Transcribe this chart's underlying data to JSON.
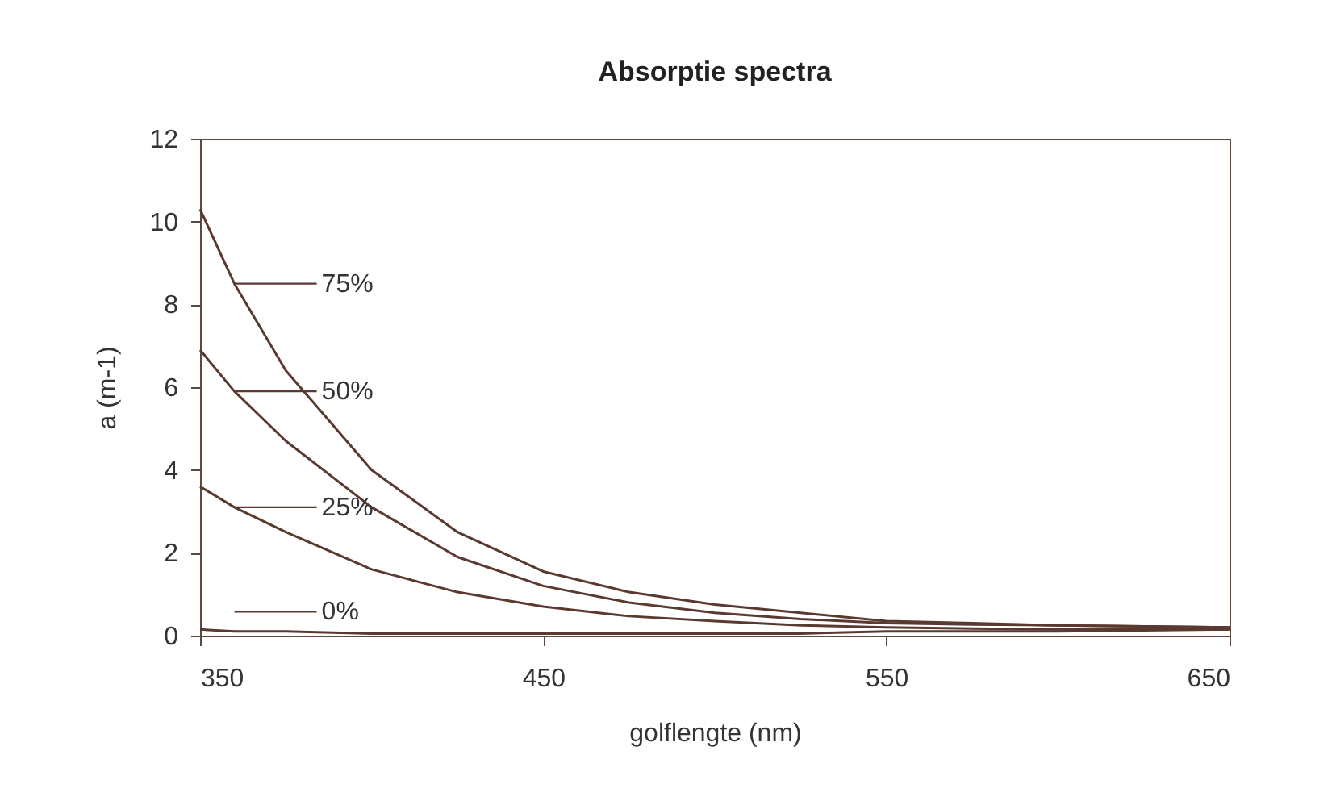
{
  "chart_data": {
    "type": "line",
    "title": "Absorptie spectra",
    "xlabel": "golflengte (nm)",
    "ylabel": "a  (m-1)",
    "x": [
      350,
      360,
      375,
      400,
      425,
      450,
      475,
      500,
      525,
      550,
      575,
      600,
      650
    ],
    "series": [
      {
        "name": "75%",
        "color": "#5a3a30",
        "values": [
          10.3,
          8.5,
          6.4,
          4.0,
          2.5,
          1.55,
          1.05,
          0.75,
          0.55,
          0.35,
          0.3,
          0.25,
          0.2
        ]
      },
      {
        "name": "50%",
        "color": "#5a3a30",
        "values": [
          6.9,
          5.9,
          4.7,
          3.1,
          1.9,
          1.2,
          0.8,
          0.55,
          0.4,
          0.3,
          0.27,
          0.25,
          0.2
        ]
      },
      {
        "name": "25%",
        "color": "#5a3a30",
        "values": [
          3.6,
          3.1,
          2.5,
          1.6,
          1.05,
          0.7,
          0.47,
          0.35,
          0.25,
          0.2,
          0.17,
          0.15,
          0.15
        ]
      },
      {
        "name": "0%",
        "color": "#5a3a30",
        "values": [
          0.15,
          0.1,
          0.1,
          0.05,
          0.05,
          0.05,
          0.05,
          0.05,
          0.05,
          0.1,
          0.1,
          0.1,
          0.15
        ]
      }
    ],
    "xlim": [
      350,
      650
    ],
    "xticks": [
      350,
      450,
      550,
      650
    ],
    "ylim": [
      0,
      12
    ],
    "yticks": [
      0,
      2,
      4,
      6,
      8,
      10,
      12
    ],
    "grid": false,
    "legend": "left",
    "marker": "none",
    "line_style": "solid"
  }
}
